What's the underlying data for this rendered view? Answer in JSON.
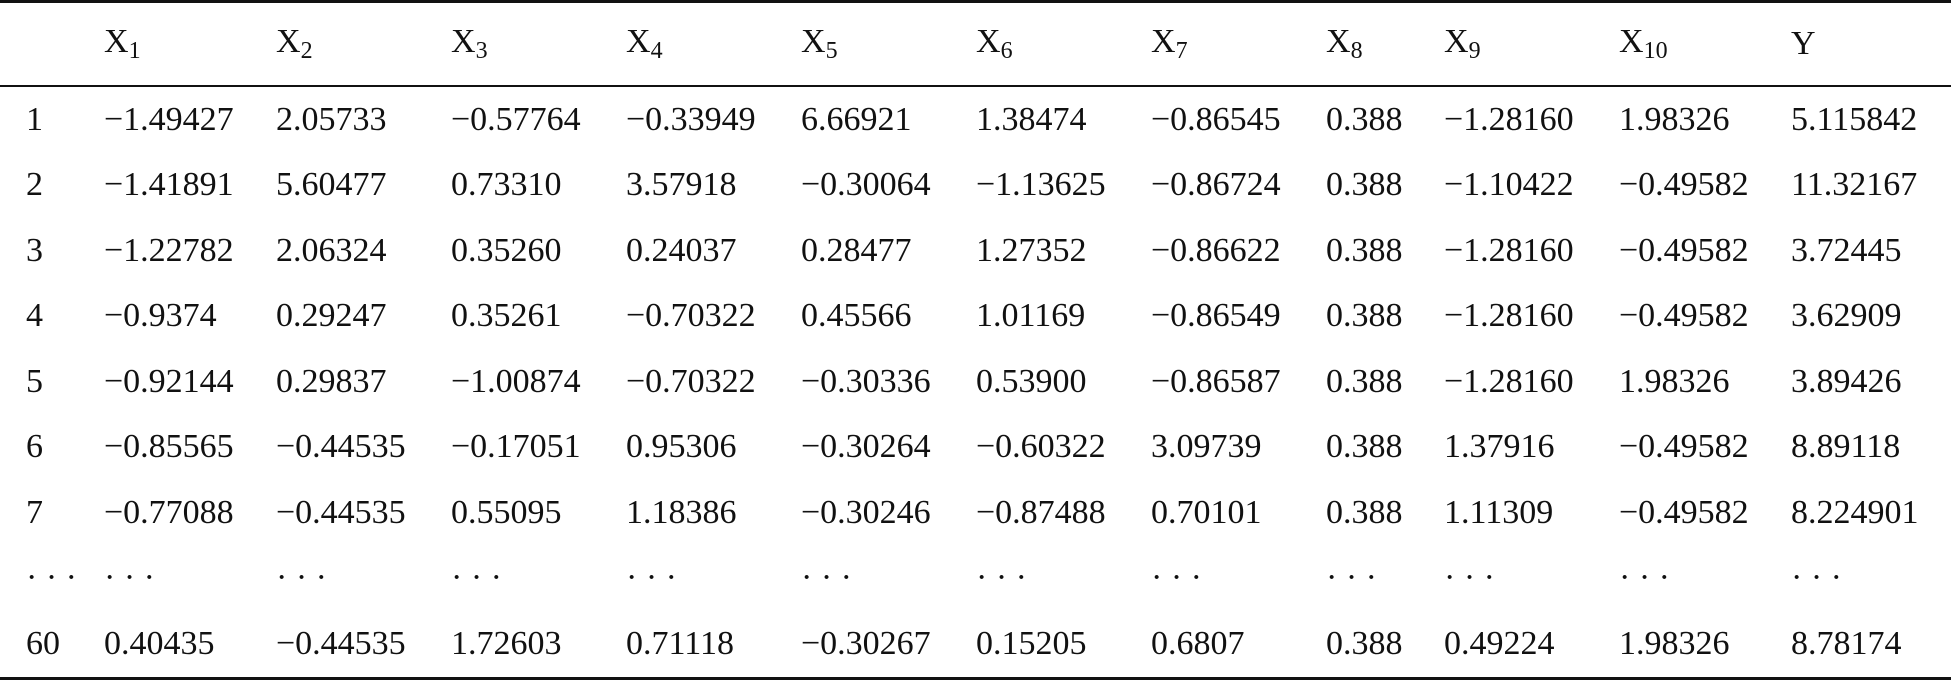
{
  "table": {
    "headers": [
      {
        "base": "",
        "sub": ""
      },
      {
        "base": "X",
        "sub": "1"
      },
      {
        "base": "X",
        "sub": "2"
      },
      {
        "base": "X",
        "sub": "3"
      },
      {
        "base": "X",
        "sub": "4"
      },
      {
        "base": "X",
        "sub": "5"
      },
      {
        "base": "X",
        "sub": "6"
      },
      {
        "base": "X",
        "sub": "7"
      },
      {
        "base": "X",
        "sub": "8"
      },
      {
        "base": "X",
        "sub": "9"
      },
      {
        "base": "X",
        "sub": "10"
      },
      {
        "base": "Y",
        "sub": ""
      }
    ],
    "rows": [
      [
        "1",
        "−1.49427",
        "2.05733",
        "−0.57764",
        "−0.33949",
        "6.66921",
        "1.38474",
        "−0.86545",
        "0.388",
        "−1.28160",
        "1.98326",
        "5.115842"
      ],
      [
        "2",
        "−1.41891",
        "5.60477",
        "0.73310",
        "3.57918",
        "−0.30064",
        "−1.13625",
        "−0.86724",
        "0.388",
        "−1.10422",
        "−0.49582",
        "11.32167"
      ],
      [
        "3",
        "−1.22782",
        "2.06324",
        "0.35260",
        "0.24037",
        "0.28477",
        "1.27352",
        "−0.86622",
        "0.388",
        "−1.28160",
        "−0.49582",
        "3.72445"
      ],
      [
        "4",
        "−0.9374",
        "0.29247",
        "0.35261",
        "−0.70322",
        "0.45566",
        "1.01169",
        "−0.86549",
        "0.388",
        "−1.28160",
        "−0.49582",
        "3.62909"
      ],
      [
        "5",
        "−0.92144",
        "0.29837",
        "−1.00874",
        "−0.70322",
        "−0.30336",
        "0.53900",
        "−0.86587",
        "0.388",
        "−1.28160",
        "1.98326",
        "3.89426"
      ],
      [
        "6",
        "−0.85565",
        "−0.44535",
        "−0.17051",
        "0.95306",
        "−0.30264",
        "−0.60322",
        "3.09739",
        "0.388",
        "1.37916",
        "−0.49582",
        "8.89118"
      ],
      [
        "7",
        "−0.77088",
        "−0.44535",
        "0.55095",
        "1.18386",
        "−0.30246",
        "−0.87488",
        "0.70101",
        "0.388",
        "1.11309",
        "−0.49582",
        "8.224901"
      ],
      [
        "· · ·",
        "· · ·",
        "· · ·",
        "· · ·",
        "· · ·",
        "· · ·",
        "· · ·",
        "· · ·",
        "· · ·",
        "· · ·",
        "· · ·",
        "· · ·"
      ],
      [
        "60",
        "0.40435",
        "−0.44535",
        "1.72603",
        "0.71118",
        "−0.30267",
        "0.15205",
        "0.6807",
        "0.388",
        "0.49224",
        "1.98326",
        "8.78174"
      ]
    ]
  }
}
